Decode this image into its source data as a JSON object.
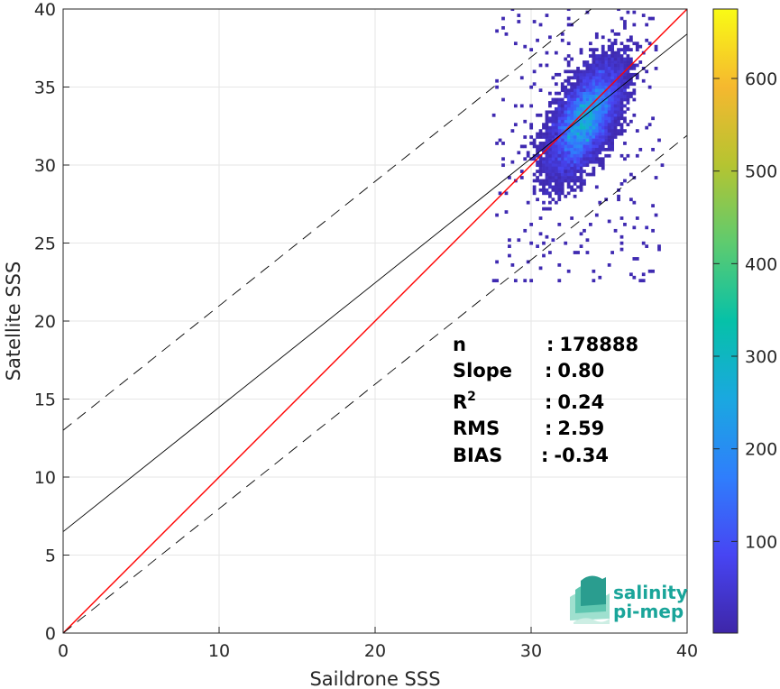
{
  "chart_data": {
    "type": "heatmap",
    "xlabel": "Saildrone SSS",
    "ylabel": "Satellite SSS",
    "xlim": [
      0,
      40
    ],
    "ylim": [
      0,
      40
    ],
    "x_ticks": [
      "0",
      "10",
      "20",
      "30",
      "40"
    ],
    "y_ticks": [
      "0",
      "5",
      "10",
      "15",
      "20",
      "25",
      "30",
      "35",
      "40"
    ],
    "grid": true,
    "colorbar": {
      "range": [
        1,
        675
      ],
      "ticks": [
        "100",
        "200",
        "300",
        "400",
        "500",
        "600"
      ],
      "tick_values": [
        100,
        200,
        300,
        400,
        500,
        600
      ],
      "colormap": [
        "#3e26a8",
        "#4745f3",
        "#2f7efc",
        "#1aa8e0",
        "#06c1a8",
        "#5ecb6f",
        "#b5c431",
        "#f5b82f",
        "#f9fb15"
      ]
    },
    "reference_lines": [
      {
        "kind": "one-to-one",
        "color": "#ff0000",
        "style": "solid",
        "x": [
          0,
          40
        ],
        "y": [
          0,
          40
        ]
      },
      {
        "kind": "regression",
        "color": "#000000",
        "style": "solid",
        "x": [
          0,
          40
        ],
        "y": [
          6.5,
          38.4
        ]
      },
      {
        "kind": "upper-bound",
        "color": "#000000",
        "style": "dashed",
        "x": [
          0,
          40
        ],
        "y": [
          13.0,
          44.9
        ]
      },
      {
        "kind": "lower-bound",
        "color": "#000000",
        "style": "dashed",
        "x": [
          0,
          40
        ],
        "y": [
          0.0,
          31.9
        ]
      }
    ],
    "density_cluster": {
      "x_center": 33.5,
      "y_center": 33.0,
      "x_range": [
        27.5,
        38.5
      ],
      "y_range": [
        22.5,
        40
      ]
    },
    "statistics": [
      {
        "label": "n",
        "sep": ":",
        "value": "178888"
      },
      {
        "label": "Slope",
        "sep": ":",
        "value": "0.80"
      },
      {
        "label": "R",
        "sup": "2",
        "sep": ":",
        "value": "0.24"
      },
      {
        "label": "RMS",
        "sep": ":",
        "value": "2.59"
      },
      {
        "label": "BIAS",
        "sep": ":",
        "value": "-0.34"
      }
    ]
  },
  "logo": {
    "line1": "salinity",
    "line2": "pi-mep"
  }
}
